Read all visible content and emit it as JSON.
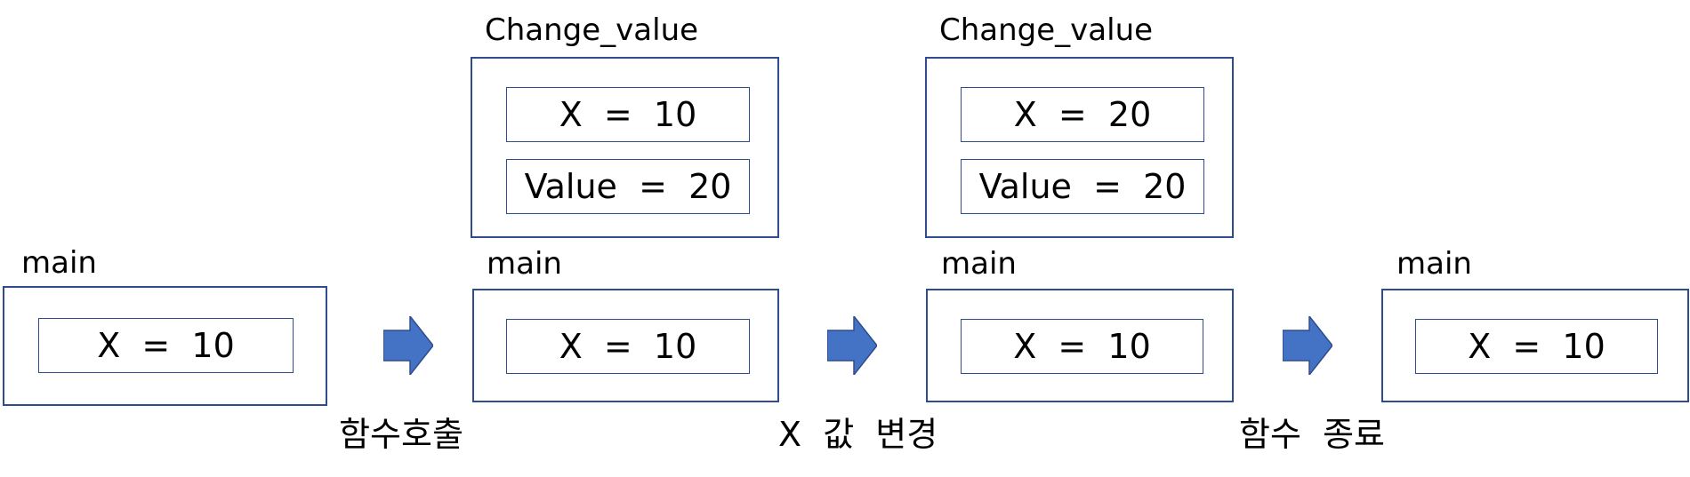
{
  "stages": [
    {
      "main": {
        "label": "main",
        "vars": [
          "X  =  10"
        ]
      }
    },
    {
      "func": {
        "label": "Change_value",
        "vars": [
          "X  =  10",
          "Value  =  20"
        ]
      },
      "main": {
        "label": "main",
        "vars": [
          "X  =  10"
        ]
      }
    },
    {
      "func": {
        "label": "Change_value",
        "vars": [
          "X  =  20",
          "Value  =  20"
        ]
      },
      "main": {
        "label": "main",
        "vars": [
          "X  =  10"
        ]
      }
    },
    {
      "main": {
        "label": "main",
        "vars": [
          "X  =  10"
        ]
      }
    }
  ],
  "steps": [
    {
      "label": "함수호출"
    },
    {
      "label": "X  값  변경"
    },
    {
      "label": "함수  종료"
    }
  ],
  "colors": {
    "border": "#2f4d8e",
    "arrow": "#4472c4"
  }
}
